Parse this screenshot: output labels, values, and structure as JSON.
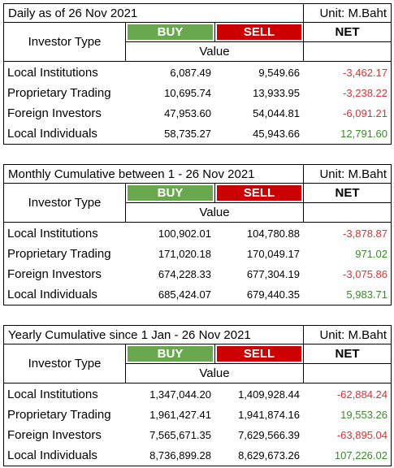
{
  "tables": [
    {
      "title": "Daily as of 26 Nov 2021",
      "unit": "Unit: M.Baht",
      "headers": {
        "investor_type": "Investor Type",
        "buy": "BUY",
        "sell": "SELL",
        "net": "NET",
        "value": "Value"
      },
      "rows": [
        [
          "Local Institutions",
          "6,087.49",
          "9,549.66",
          "-3,462.17"
        ],
        [
          "Proprietary Trading",
          "10,695.74",
          "13,933.95",
          "-3,238.22"
        ],
        [
          "Foreign Investors",
          "47,953.60",
          "54,044.81",
          "-6,091.21"
        ],
        [
          "Local Individuals",
          "58,735.27",
          "45,943.66",
          "12,791.60"
        ]
      ]
    },
    {
      "title": "Monthly Cumulative between 1 - 26 Nov 2021",
      "unit": "Unit: M.Baht",
      "headers": {
        "investor_type": "Investor Type",
        "buy": "BUY",
        "sell": "SELL",
        "net": "NET",
        "value": "Value"
      },
      "rows": [
        [
          "Local Institutions",
          "100,902.01",
          "104,780.88",
          "-3,878.87"
        ],
        [
          "Proprietary Trading",
          "171,020.18",
          "170,049.17",
          "971.02"
        ],
        [
          "Foreign Investors",
          "674,228.33",
          "677,304.19",
          "-3,075.86"
        ],
        [
          "Local Individuals",
          "685,424.07",
          "679,440.35",
          "5,983.71"
        ]
      ]
    },
    {
      "title": "Yearly Cumulative since 1 Jan - 26 Nov 2021",
      "unit": "Unit: M.Baht",
      "headers": {
        "investor_type": "Investor Type",
        "buy": "BUY",
        "sell": "SELL",
        "net": "NET",
        "value": "Value"
      },
      "rows": [
        [
          "Local Institutions",
          "1,347,044.20",
          "1,409,928.44",
          "-62,884.24"
        ],
        [
          "Proprietary Trading",
          "1,961,427.41",
          "1,941,874.16",
          "19,553.26"
        ],
        [
          "Foreign Investors",
          "7,565,671.35",
          "7,629,566.39",
          "-63,895.04"
        ],
        [
          "Local Individuals",
          "8,736,899.28",
          "8,629,673.26",
          "107,226.02"
        ]
      ]
    }
  ]
}
